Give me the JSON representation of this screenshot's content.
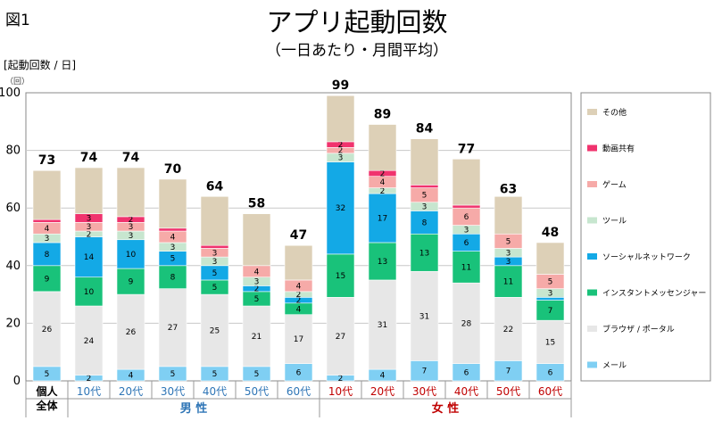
{
  "figure_label": "図1",
  "chart_data": {
    "type": "bar",
    "stacked": true,
    "title": "アプリ起動回数",
    "subtitle": "（一日あたり・月間平均）",
    "ylabel": "[起動回数 / 日]",
    "yunit_note": "（回）",
    "ylim": [
      0,
      100
    ],
    "yticks": [
      0,
      20,
      40,
      60,
      80,
      100
    ],
    "categories": [
      "個人\n全体",
      "10代",
      "20代",
      "30代",
      "40代",
      "50代",
      "60代",
      "10代",
      "20代",
      "30代",
      "40代",
      "50代",
      "60代"
    ],
    "groups": [
      {
        "label": "男 性",
        "categories": [
          "10代",
          "20代",
          "30代",
          "40代",
          "50代",
          "60代"
        ],
        "color": "#2e75b6"
      },
      {
        "label": "女 性",
        "categories": [
          "10代",
          "20代",
          "30代",
          "40代",
          "50代",
          "60代"
        ],
        "color": "#c00000"
      }
    ],
    "totals": [
      73,
      74,
      74,
      70,
      64,
      58,
      47,
      99,
      89,
      84,
      77,
      63,
      48
    ],
    "series": [
      {
        "name": "メール",
        "color": "#7fcff3",
        "values": [
          5,
          2,
          4,
          5,
          5,
          5,
          6,
          2,
          4,
          7,
          6,
          7,
          6
        ]
      },
      {
        "name": "ブラウザ / ポータル",
        "color": "#e7e7e7",
        "values": [
          26,
          24,
          26,
          27,
          25,
          21,
          17,
          27,
          31,
          31,
          28,
          22,
          15
        ]
      },
      {
        "name": "インスタントメッセンジャー",
        "color": "#19c27a",
        "values": [
          9,
          10,
          9,
          8,
          5,
          5,
          4,
          15,
          13,
          13,
          11,
          11,
          7
        ]
      },
      {
        "name": "ソーシャルネットワーク",
        "color": "#13a9e6",
        "values": [
          8,
          14,
          10,
          5,
          5,
          2,
          2,
          32,
          17,
          8,
          6,
          3,
          1
        ]
      },
      {
        "name": "ツール",
        "color": "#c7e6cf",
        "values": [
          3,
          2,
          3,
          3,
          3,
          3,
          2,
          3,
          2,
          3,
          3,
          3,
          3
        ]
      },
      {
        "name": "ゲーム",
        "color": "#f6aaa8",
        "values": [
          4,
          3,
          3,
          4,
          3,
          4,
          4,
          2,
          4,
          5,
          6,
          5,
          5
        ]
      },
      {
        "name": "動画共有",
        "color": "#f0336e",
        "values": [
          1,
          3,
          2,
          1,
          1,
          0,
          0,
          2,
          2,
          1,
          1,
          0,
          0
        ]
      },
      {
        "name": "その他",
        "color": "#ddd0b7",
        "values": [
          17,
          16,
          17,
          17,
          17,
          18,
          12,
          16,
          16,
          16,
          16,
          13,
          11
        ]
      }
    ],
    "legend_position": "right"
  }
}
